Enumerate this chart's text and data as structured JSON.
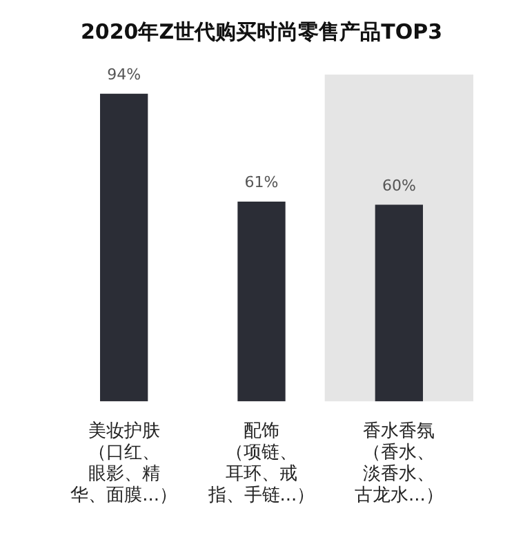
{
  "chart_data": {
    "type": "bar",
    "title": "2020年Z世代购买时尚零售产品TOP3",
    "categories": [
      "美妆护肤（口红、眼影、精华、面膜...）",
      "配饰（项链、耳环、戒指、手链...）",
      "香水香氛（香水、淡香水、古龙水...）"
    ],
    "values": [
      94,
      61,
      60
    ],
    "color": "#2b2d36",
    "value_labels": [
      "94%",
      "61%",
      "60%"
    ],
    "bands": [
      {
        "axis": "x",
        "from": "香水香氛（香水、淡香水、古龙水...）",
        "to": "香水香氛（香水、淡香水、古龙水...）",
        "color": "#e5e5e5"
      }
    ],
    "grid": false,
    "legend": false
  }
}
